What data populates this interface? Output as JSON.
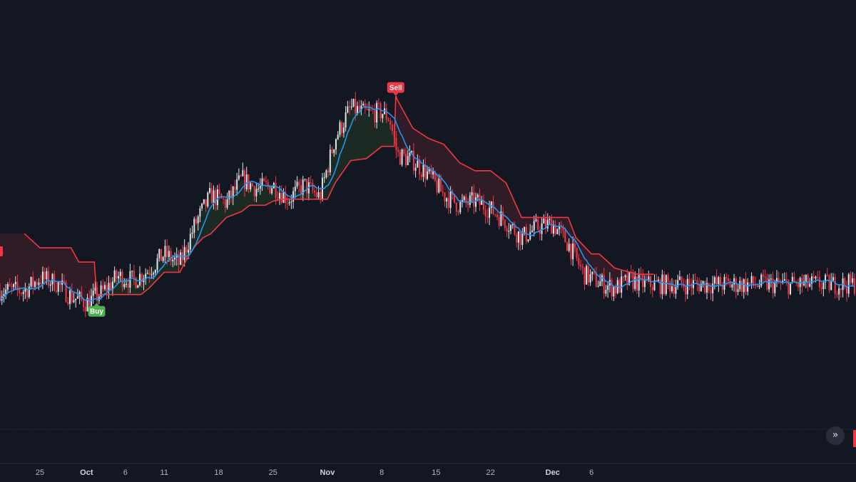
{
  "chart_data": {
    "type": "candlestick",
    "x_ticks": [
      {
        "label": "25",
        "i": 0
      },
      {
        "label": "Oct",
        "i": 6,
        "bold": true
      },
      {
        "label": "6",
        "i": 11
      },
      {
        "label": "11",
        "i": 16
      },
      {
        "label": "18",
        "i": 23
      },
      {
        "label": "25",
        "i": 30
      },
      {
        "label": "Nov",
        "i": 37,
        "bold": true
      },
      {
        "label": "8",
        "i": 44
      },
      {
        "label": "15",
        "i": 51
      },
      {
        "label": "22",
        "i": 58
      },
      {
        "label": "Dec",
        "i": 66,
        "bold": true
      },
      {
        "label": "6",
        "i": 71
      }
    ],
    "price_path": [
      {
        "i": -2,
        "v": 40
      },
      {
        "i": 0,
        "v": 46
      },
      {
        "i": 2,
        "v": 44
      },
      {
        "i": 4,
        "v": 37
      },
      {
        "i": 6,
        "v": 34
      },
      {
        "i": 8,
        "v": 39
      },
      {
        "i": 10,
        "v": 47
      },
      {
        "i": 12,
        "v": 45
      },
      {
        "i": 14,
        "v": 50
      },
      {
        "i": 16,
        "v": 58
      },
      {
        "i": 18,
        "v": 53
      },
      {
        "i": 20,
        "v": 73
      },
      {
        "i": 22,
        "v": 87
      },
      {
        "i": 24,
        "v": 83
      },
      {
        "i": 26,
        "v": 95
      },
      {
        "i": 28,
        "v": 90
      },
      {
        "i": 30,
        "v": 92
      },
      {
        "i": 32,
        "v": 85
      },
      {
        "i": 34,
        "v": 92
      },
      {
        "i": 36,
        "v": 86
      },
      {
        "i": 38,
        "v": 115
      },
      {
        "i": 40,
        "v": 130
      },
      {
        "i": 42,
        "v": 127
      },
      {
        "i": 44,
        "v": 128
      },
      {
        "i": 45,
        "v": 125
      },
      {
        "i": 46,
        "v": 107
      },
      {
        "i": 48,
        "v": 104
      },
      {
        "i": 50,
        "v": 97
      },
      {
        "i": 52,
        "v": 87
      },
      {
        "i": 54,
        "v": 82
      },
      {
        "i": 56,
        "v": 84
      },
      {
        "i": 58,
        "v": 80
      },
      {
        "i": 60,
        "v": 74
      },
      {
        "i": 62,
        "v": 66
      },
      {
        "i": 64,
        "v": 71
      },
      {
        "i": 66,
        "v": 73
      },
      {
        "i": 68,
        "v": 63
      },
      {
        "i": 70,
        "v": 48
      },
      {
        "i": 72,
        "v": 44
      },
      {
        "i": 74,
        "v": 41
      },
      {
        "i": 76,
        "v": 45
      },
      {
        "i": 78,
        "v": 43
      }
    ],
    "supertrend_path": [
      {
        "i": -2,
        "v": 68
      },
      {
        "i": 0,
        "v": 61
      },
      {
        "i": 4,
        "v": 61
      },
      {
        "i": 5,
        "v": 54
      },
      {
        "i": 7,
        "v": 54
      },
      {
        "i": 7.3,
        "v": 38
      },
      {
        "i": 10,
        "v": 38
      },
      {
        "i": 10.5,
        "v": 38
      },
      {
        "i": 11,
        "v": 38
      },
      {
        "i": 13,
        "v": 38
      },
      {
        "i": 14,
        "v": 41
      },
      {
        "i": 16,
        "v": 49
      },
      {
        "i": 18,
        "v": 49
      },
      {
        "i": 19,
        "v": 56
      },
      {
        "i": 20,
        "v": 62
      },
      {
        "i": 21,
        "v": 66
      },
      {
        "i": 22,
        "v": 68
      },
      {
        "i": 23,
        "v": 72
      },
      {
        "i": 24,
        "v": 76
      },
      {
        "i": 26,
        "v": 79
      },
      {
        "i": 27,
        "v": 82
      },
      {
        "i": 29,
        "v": 82
      },
      {
        "i": 30,
        "v": 84
      },
      {
        "i": 31,
        "v": 85
      },
      {
        "i": 33,
        "v": 85
      },
      {
        "i": 37,
        "v": 85
      },
      {
        "i": 38,
        "v": 93
      },
      {
        "i": 40,
        "v": 104
      },
      {
        "i": 42,
        "v": 105
      },
      {
        "i": 44,
        "v": 111
      },
      {
        "i": 45.6,
        "v": 111
      },
      {
        "i": 45.8,
        "v": 136
      },
      {
        "i": 46,
        "v": 134
      },
      {
        "i": 48,
        "v": 120
      },
      {
        "i": 50,
        "v": 115
      },
      {
        "i": 52,
        "v": 112
      },
      {
        "i": 54,
        "v": 103
      },
      {
        "i": 56,
        "v": 99
      },
      {
        "i": 58,
        "v": 99
      },
      {
        "i": 60,
        "v": 93
      },
      {
        "i": 62,
        "v": 76
      },
      {
        "i": 66,
        "v": 76
      },
      {
        "i": 68,
        "v": 76
      },
      {
        "i": 69,
        "v": 66
      },
      {
        "i": 71,
        "v": 58
      },
      {
        "i": 72,
        "v": 58
      },
      {
        "i": 74,
        "v": 51
      },
      {
        "i": 75,
        "v": 50
      },
      {
        "i": 77,
        "v": 48
      },
      {
        "i": 79,
        "v": 48
      }
    ],
    "signals": [
      {
        "type": "buy",
        "label": "Buy",
        "i": 7.3,
        "v": 38
      },
      {
        "type": "sell",
        "label": "Sell",
        "i": 45.8,
        "v": 136
      }
    ],
    "colors": {
      "background": "#131722",
      "up_candle": "#e0e3eb",
      "down_candle": "#f23645",
      "moving_average": "#2196f3",
      "supertrend_line": "#f23645",
      "bull_fill": "#1b2a23",
      "bear_fill": "#2f1c26",
      "buy_label": "#4caf50",
      "sell_label": "#f23645"
    },
    "grid": false,
    "legend": "none"
  },
  "nav": {
    "scroll_to_realtime_icon": "double-chevron-right-icon",
    "glyph": "»"
  }
}
